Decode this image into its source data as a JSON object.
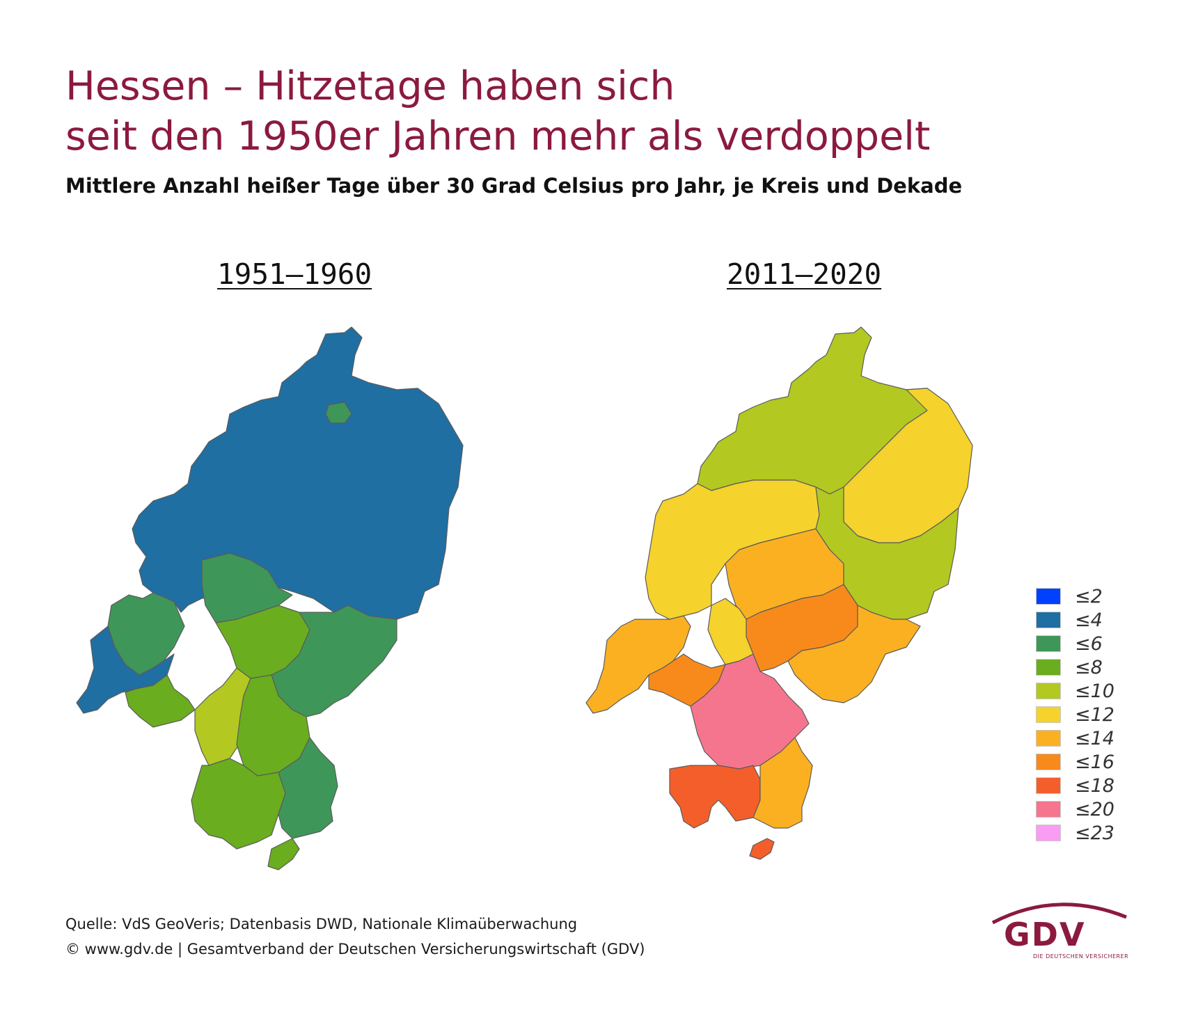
{
  "header": {
    "title_line1": "Hessen – Hitzetage haben sich",
    "title_line2": "seit den 1950er Jahren mehr als verdoppelt",
    "subtitle": "Mittlere Anzahl heißer Tage über 30 Grad Celsius pro Jahr, je Kreis und Dekade"
  },
  "maps": [
    {
      "decade": "1951–1960"
    },
    {
      "decade": "2011–2020"
    }
  ],
  "legend": [
    {
      "label": "≤2",
      "color": "#0040ff"
    },
    {
      "label": "≤4",
      "color": "#1f6fa3"
    },
    {
      "label": "≤6",
      "color": "#3f9659"
    },
    {
      "label": "≤8",
      "color": "#6aad1f"
    },
    {
      "label": "≤10",
      "color": "#b3c821"
    },
    {
      "label": "≤12",
      "color": "#f5d22c"
    },
    {
      "label": "≤14",
      "color": "#fbb022"
    },
    {
      "label": "≤16",
      "color": "#f88a1c"
    },
    {
      "label": "≤18",
      "color": "#f45e2b"
    },
    {
      "label": "≤20",
      "color": "#f5758f"
    },
    {
      "label": "≤23",
      "color": "#fa9cf4"
    }
  ],
  "footer": {
    "source": "Quelle: VdS GeoVeris; Datenbasis DWD, Nationale Klimaüberwachung",
    "copyright": "© www.gdv.de | Gesamtverband der Deutschen Versicherungswirtschaft (GDV)"
  },
  "logo": {
    "text": "GDV",
    "tagline": "DIE DEUTSCHEN VERSICHERER"
  },
  "region_classes": {
    "1951-1960": {
      "north": "≤4",
      "kassel_city": "≤6",
      "west": "≤6",
      "marburg_south": "≤6",
      "wetterau": "≤8",
      "east_south": "≤6",
      "rheingau": "≤8",
      "frankfurt_west": "≤10",
      "frankfurt_core": "≤8",
      "south": "≤8",
      "odenwald": "≤6",
      "south_tip": "≤8",
      "far_west": "≤4"
    },
    "2011-2020": {
      "north": "≤10",
      "northeast": "≤12",
      "central_west": "≤12",
      "center": "≤14",
      "wetterau": "≤16",
      "east": "≤10",
      "east_south": "≤14",
      "rheingau": "≤14",
      "mainz_area": "≤16",
      "frankfurt_core": "≤20",
      "bergstrasse": "≤18",
      "odenwald": "≤14"
    }
  }
}
